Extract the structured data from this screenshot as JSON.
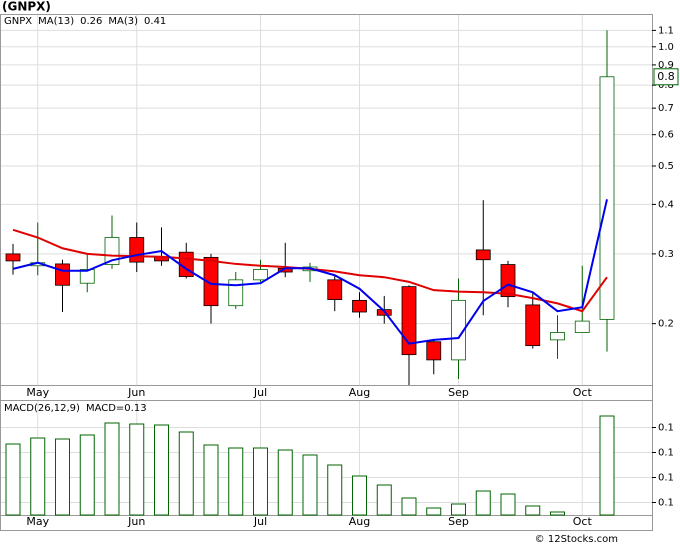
{
  "chart_data": [
    {
      "type": "candlestick",
      "title": "(GNPX)",
      "ticker": "GNPX",
      "log_scale": true,
      "grid": true,
      "categories": [
        null,
        "May",
        null,
        null,
        null,
        "Jun",
        null,
        null,
        null,
        null,
        "Jul",
        null,
        null,
        null,
        "Aug",
        null,
        null,
        null,
        "Sep",
        null,
        null,
        null,
        null,
        "Oct",
        null
      ],
      "open": [
        0.3,
        0.28,
        0.283,
        0.253,
        0.282,
        0.33,
        0.295,
        0.303,
        0.294,
        0.222,
        0.258,
        0.276,
        0.272,
        0.258,
        0.229,
        0.217,
        0.248,
        0.18,
        0.162,
        0.307,
        0.282,
        0.223,
        0.182,
        0.19,
        0.205
      ],
      "high": [
        0.318,
        0.36,
        0.29,
        0.3,
        0.375,
        0.36,
        0.35,
        0.32,
        0.3,
        0.27,
        0.29,
        0.32,
        0.285,
        0.264,
        0.24,
        0.235,
        0.25,
        0.183,
        0.26,
        0.41,
        0.288,
        0.24,
        0.21,
        0.28,
        1.1
      ],
      "low": [
        0.266,
        0.265,
        0.214,
        0.24,
        0.275,
        0.27,
        0.28,
        0.26,
        0.2,
        0.218,
        0.255,
        0.262,
        0.255,
        0.215,
        0.207,
        0.2,
        0.14,
        0.149,
        0.145,
        0.21,
        0.22,
        0.173,
        0.163,
        0.19,
        0.17
      ],
      "close": [
        0.288,
        0.285,
        0.25,
        0.274,
        0.33,
        0.286,
        0.288,
        0.263,
        0.222,
        0.258,
        0.274,
        0.27,
        0.278,
        0.23,
        0.214,
        0.21,
        0.167,
        0.162,
        0.229,
        0.29,
        0.234,
        0.176,
        0.19,
        0.203,
        0.84
      ],
      "up_color": "#006400",
      "down_color": "#ff0000",
      "series": [
        {
          "name": "MA(13)",
          "color": "#e00000",
          "last_label": "0.26",
          "values": [
            0.345,
            0.33,
            0.31,
            0.3,
            0.297,
            0.296,
            0.295,
            0.292,
            0.288,
            0.283,
            0.28,
            0.278,
            0.275,
            0.271,
            0.265,
            0.262,
            0.255,
            0.243,
            0.241,
            0.24,
            0.238,
            0.232,
            0.225,
            0.215,
            0.262
          ]
        },
        {
          "name": "MA(3)",
          "color": "#0000ee",
          "last_label": "0.41",
          "values": [
            0.275,
            0.285,
            0.272,
            0.272,
            0.289,
            0.298,
            0.305,
            0.275,
            0.252,
            0.25,
            0.253,
            0.276,
            0.276,
            0.265,
            0.245,
            0.215,
            0.178,
            0.182,
            0.184,
            0.228,
            0.251,
            0.24,
            0.215,
            0.22,
            0.412
          ]
        }
      ],
      "last_price": {
        "value": 0.84,
        "label": "0.8"
      },
      "ylim": [
        0.14,
        1.21
      ],
      "yticks": [
        0.2,
        0.3,
        0.4,
        0.5,
        0.6,
        0.7,
        0.8,
        0.9,
        {
          "value": 1,
          "label": "1.0"
        },
        1.1
      ]
    },
    {
      "type": "bar",
      "title": "MACD(26,12,9)",
      "subtitle": "MACD=0.13",
      "grid": true,
      "color": "#006400",
      "categories": [
        null,
        "May",
        null,
        null,
        null,
        "Jun",
        null,
        null,
        null,
        null,
        "Jul",
        null,
        null,
        null,
        "Aug",
        null,
        null,
        null,
        "Sep",
        null,
        null,
        null,
        null,
        "Oct",
        null
      ],
      "values": [
        0.1184,
        0.1208,
        0.1204,
        0.122,
        0.1268,
        0.1264,
        0.126,
        0.1232,
        0.118,
        0.1168,
        0.1168,
        0.116,
        0.114,
        0.11,
        0.1056,
        0.102,
        0.0968,
        0.0928,
        0.0944,
        0.0996,
        0.0984,
        0.0936,
        0.0912,
        0.09,
        0.1296
      ],
      "ylim": [
        0.09,
        0.136
      ],
      "yticks": [
        {
          "value": 0.125,
          "label": "0.1"
        },
        {
          "value": 0.115,
          "label": "0.1"
        },
        {
          "value": 0.105,
          "label": "0.1"
        },
        {
          "value": 0.095,
          "label": "0.1"
        }
      ]
    }
  ],
  "footer": "© 12Stocks.com"
}
